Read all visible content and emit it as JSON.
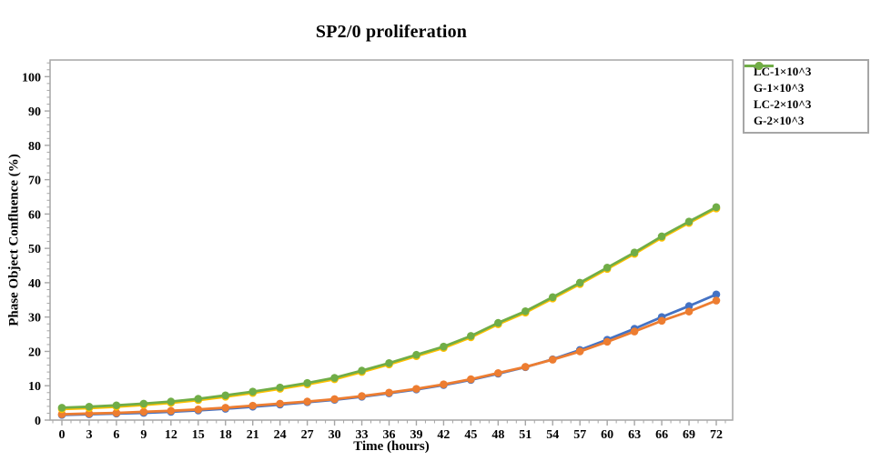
{
  "chart_data": {
    "type": "line",
    "title": "SP2/0 proliferation",
    "xlabel": "Time (hours)",
    "ylabel": "Phase Object Confluence (%)",
    "x": [
      0,
      3,
      6,
      9,
      12,
      15,
      18,
      21,
      24,
      27,
      30,
      33,
      36,
      39,
      42,
      45,
      48,
      51,
      54,
      57,
      60,
      63,
      66,
      69,
      72
    ],
    "ylim": [
      0,
      100
    ],
    "yticks": [
      0,
      10,
      20,
      30,
      40,
      50,
      60,
      70,
      80,
      90,
      100
    ],
    "grid": false,
    "legend_position": "right",
    "marker": "circle",
    "series": [
      {
        "name": "LC-1×10^3",
        "color": "#4472C4",
        "values": [
          1.5,
          1.7,
          1.9,
          2.1,
          2.4,
          2.8,
          3.3,
          3.9,
          4.5,
          5.2,
          5.9,
          6.8,
          7.8,
          8.9,
          10.2,
          11.7,
          13.5,
          15.4,
          17.7,
          20.4,
          23.4,
          26.6,
          30.0,
          33.2,
          36.6
        ]
      },
      {
        "name": "G-1×10^3",
        "color": "#ED7D31",
        "values": [
          1.7,
          1.9,
          2.1,
          2.4,
          2.7,
          3.1,
          3.6,
          4.2,
          4.8,
          5.4,
          6.1,
          7.0,
          8.0,
          9.1,
          10.4,
          11.9,
          13.7,
          15.5,
          17.6,
          20.0,
          22.8,
          25.8,
          28.9,
          31.6,
          34.8
        ]
      },
      {
        "name": "LC-2×10^3",
        "color": "#FFC000",
        "values": [
          3.2,
          3.5,
          3.9,
          4.4,
          5.0,
          5.8,
          6.8,
          7.9,
          9.1,
          10.4,
          11.9,
          14.0,
          16.2,
          18.6,
          21.0,
          24.1,
          27.9,
          31.3,
          35.4,
          39.6,
          44.0,
          48.4,
          53.1,
          57.4,
          61.6
        ]
      },
      {
        "name": "G-2×10^3",
        "color": "#70AD47",
        "values": [
          3.6,
          3.9,
          4.3,
          4.8,
          5.4,
          6.2,
          7.2,
          8.3,
          9.5,
          10.8,
          12.3,
          14.4,
          16.6,
          19.0,
          21.4,
          24.5,
          28.3,
          31.7,
          35.8,
          40.0,
          44.4,
          48.8,
          53.5,
          57.8,
          62.0
        ]
      }
    ]
  },
  "colors": {
    "axis": "#A6A6A6",
    "text": "#000000",
    "background": "#FFFFFF"
  }
}
